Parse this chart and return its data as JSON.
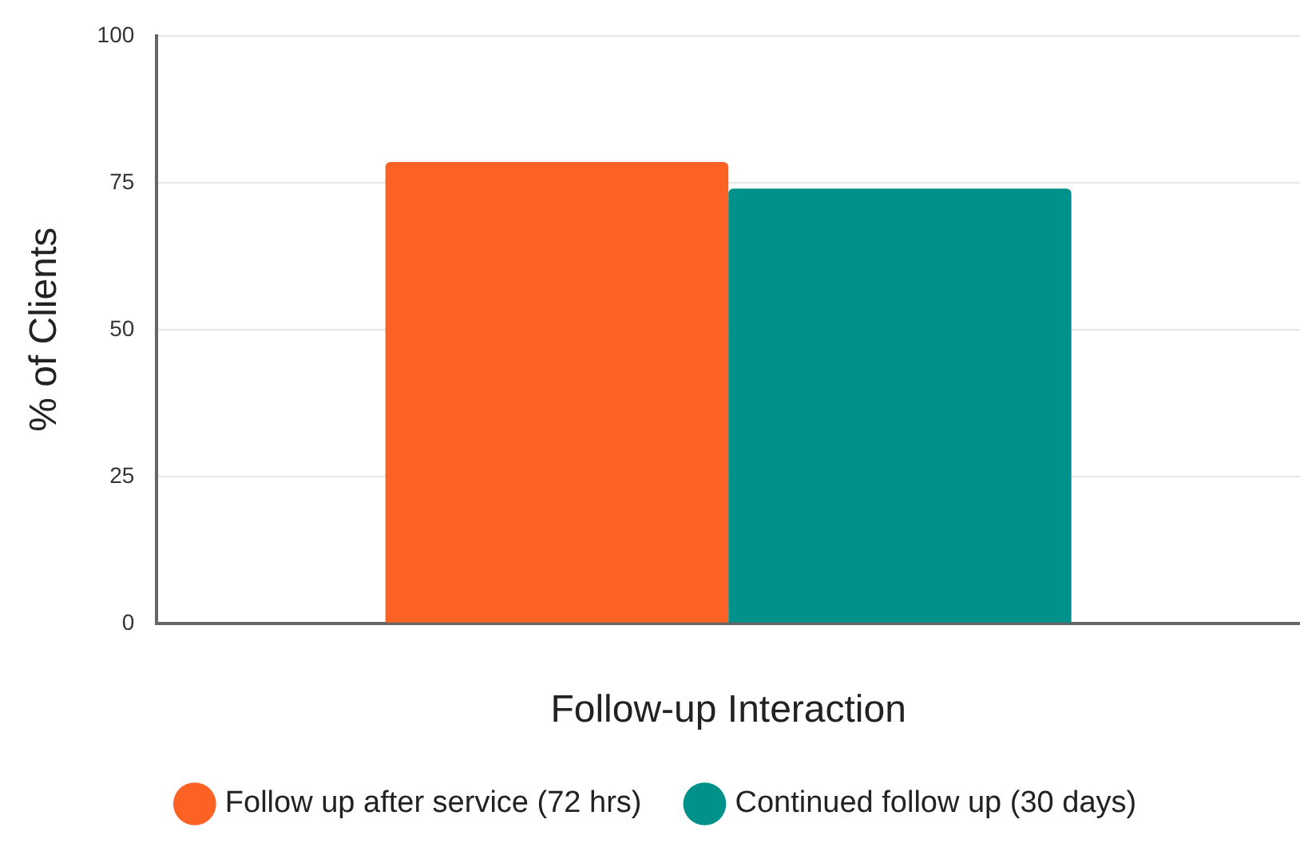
{
  "chart_data": {
    "type": "bar",
    "xlabel": "Follow-up Interaction",
    "ylabel": "% of Clients",
    "categories": [
      null
    ],
    "series": [
      {
        "name": "Follow up after service (72 hrs)",
        "color": "#fd6225",
        "values": [
          78.5
        ]
      },
      {
        "name": "Continued follow up (30 days)",
        "color": "#00918a",
        "values": [
          74
        ]
      }
    ],
    "ylim": [
      0,
      100
    ],
    "yticks": [
      0,
      25,
      50,
      75,
      100
    ],
    "grid": "y",
    "legend": "bottom"
  }
}
